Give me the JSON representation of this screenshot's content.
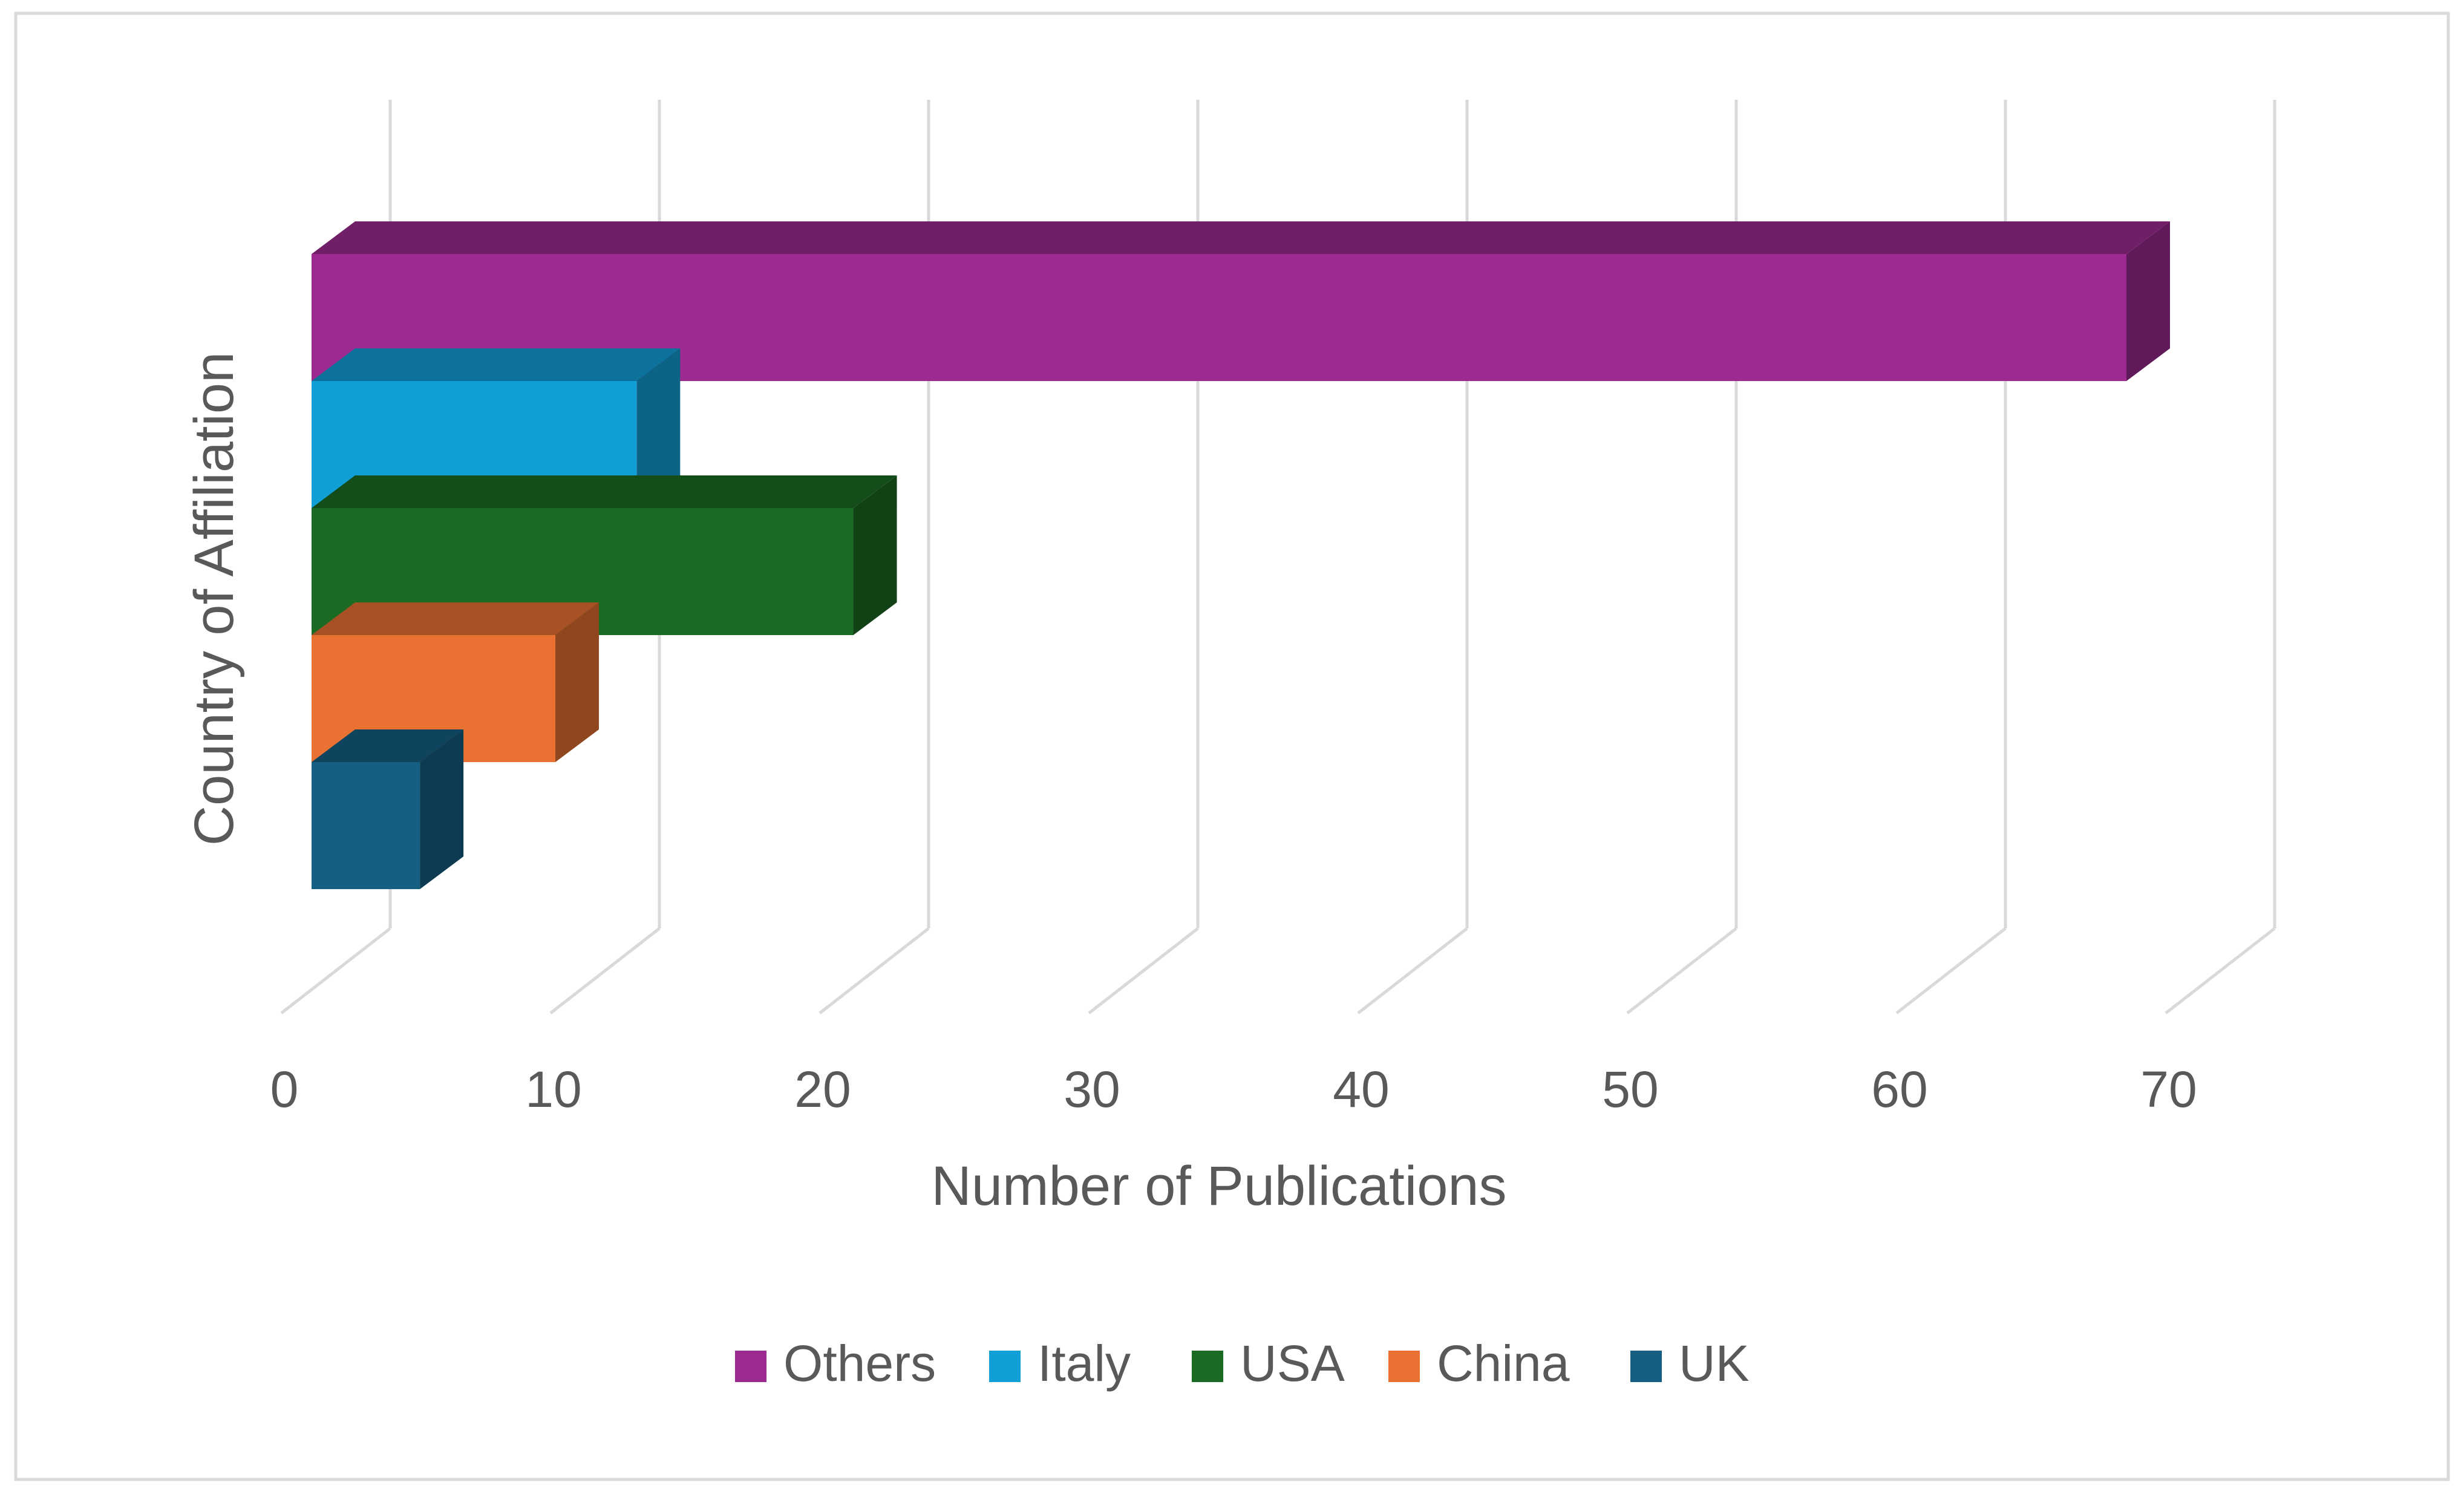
{
  "chart_data": {
    "type": "bar",
    "orientation": "horizontal",
    "style": "3d-clustered",
    "title": "",
    "xlabel": "Number of Publications",
    "ylabel": "Country of Affiliation",
    "xlim": [
      0,
      70
    ],
    "xticks": [
      "0",
      "10",
      "20",
      "30",
      "40",
      "50",
      "60",
      "70"
    ],
    "grid": true,
    "legend_position": "bottom",
    "series": [
      {
        "name": "Others",
        "value": 67,
        "color": "#9C2A90"
      },
      {
        "name": "Italy",
        "value": 12,
        "color": "#119FD8"
      },
      {
        "name": "USA",
        "value": 20,
        "color": "#1B6B24"
      },
      {
        "name": "China",
        "value": 9,
        "color": "#E97132"
      },
      {
        "name": "UK",
        "value": 4,
        "color": "#155F82"
      }
    ]
  }
}
